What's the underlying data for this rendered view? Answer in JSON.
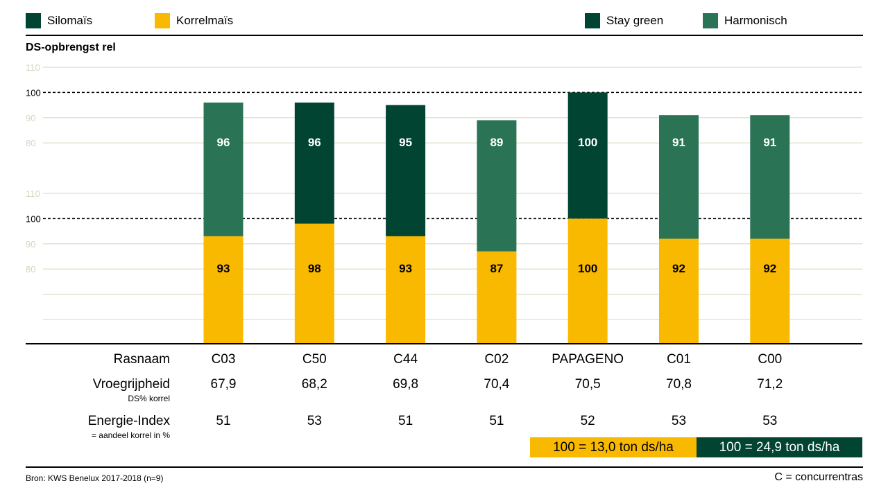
{
  "colors": {
    "silomais": "#004431",
    "korrelmais": "#f9b900",
    "harmonisch": "#2a7455",
    "stay_green": "#004431",
    "grid": "#e3e3d2",
    "tick": "#d6d6c2"
  },
  "legend": [
    {
      "label": "Silomaïs",
      "color": "#004431"
    },
    {
      "label": "Korrelmaïs",
      "color": "#f9b900"
    },
    {
      "label": "Stay green",
      "color": "#004431"
    },
    {
      "label": "Harmonisch",
      "color": "#2a7455"
    }
  ],
  "chart_data": {
    "type": "bar",
    "title": "DS-opbrengst rel",
    "categories": [
      "C03",
      "C50",
      "C44",
      "C02",
      "PAPAGENO",
      "C01",
      "C00"
    ],
    "series": [
      {
        "name": "Silomaïs",
        "values": [
          96,
          96,
          95,
          89,
          100,
          91,
          91
        ],
        "types": [
          "Harmonisch",
          "Stay green",
          "Stay green",
          "Harmonisch",
          "Stay green",
          "Harmonisch",
          "Harmonisch"
        ]
      },
      {
        "name": "Korrelmaïs",
        "values": [
          93,
          98,
          93,
          87,
          100,
          92,
          92
        ]
      }
    ],
    "upper_axis": {
      "ticks": [
        110,
        100,
        90,
        80
      ],
      "ylim": [
        70,
        110
      ]
    },
    "lower_axis": {
      "ticks": [
        110,
        100,
        90,
        80
      ],
      "ylim": [
        60,
        110
      ]
    },
    "reference_line": 100
  },
  "table": {
    "rows": [
      {
        "label": "Rasnaam",
        "sub": "",
        "values": [
          "C03",
          "C50",
          "C44",
          "C02",
          "PAPAGENO",
          "C01",
          "C00"
        ]
      },
      {
        "label": "Vroegrijpheid",
        "sub": "DS% korrel",
        "values": [
          "67,9",
          "68,2",
          "69,8",
          "70,4",
          "70,5",
          "70,8",
          "71,2"
        ]
      },
      {
        "label": "Energie-Index",
        "sub": "= aandeel korrel in %",
        "values": [
          "51",
          "53",
          "51",
          "51",
          "52",
          "53",
          "53"
        ]
      }
    ]
  },
  "notes": {
    "korrel": "100 = 13,0 ton ds/ha",
    "silo": "100 = 24,9 ton ds/ha"
  },
  "footer": {
    "source": "Bron: KWS Benelux 2017-2018 (n=9)",
    "legend_c": "C = concurrentras"
  }
}
